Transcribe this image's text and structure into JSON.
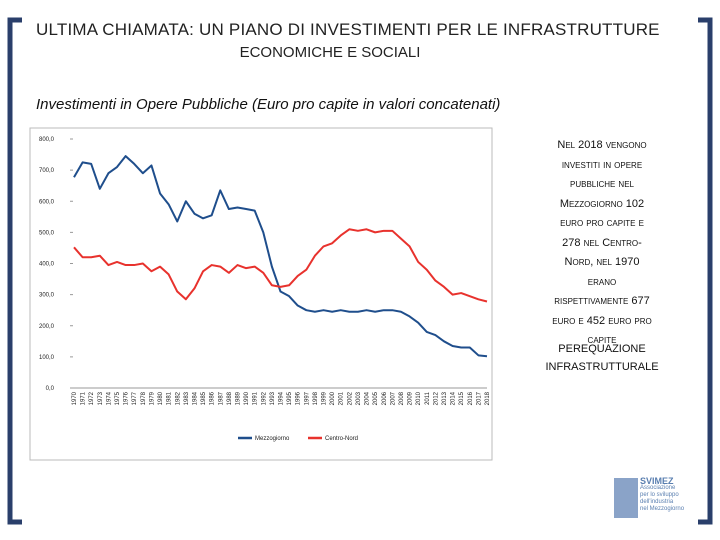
{
  "slide": {
    "title_line1": "ULTIMA CHIAMATA: UN PIANO DI INVESTIMENTI PER LE INFRASTRUTTURE",
    "title_line2": "ECONOMICHE E SOCIALI",
    "subtitle": "Investimenti in Opere Pubbliche (Euro pro capite  in valori concatenati)",
    "side_text": [
      "Nel 2018 vengono",
      "investiti in opere",
      "pubbliche nel",
      "Mezzogiorno 102",
      "euro pro capite e",
      "278 nel Centro-",
      "Nord, nel 1970",
      "erano",
      "rispettivamente 677",
      "euro e 452 euro pro",
      "capite"
    ],
    "side_text2": [
      "PEREQUAZIONE",
      "INFRASTRUTTURALE"
    ],
    "logo": [
      "SVIMEZ",
      "Associazione",
      "per lo sviluppo",
      "dell'industria",
      "nel Mezzogiorno"
    ]
  },
  "chart_data": {
    "type": "line",
    "categories": [
      "1970",
      "1971",
      "1972",
      "1973",
      "1974",
      "1975",
      "1976",
      "1977",
      "1978",
      "1979",
      "1980",
      "1981",
      "1982",
      "1983",
      "1984",
      "1985",
      "1986",
      "1987",
      "1988",
      "1989",
      "1990",
      "1991",
      "1992",
      "1993",
      "1994",
      "1995",
      "1996",
      "1997",
      "1998",
      "1999",
      "2000",
      "2001",
      "2002",
      "2003",
      "2004",
      "2005",
      "2006",
      "2007",
      "2008",
      "2009",
      "2010",
      "2011",
      "2012",
      "2013",
      "2014",
      "2015",
      "2016",
      "2017",
      "2018"
    ],
    "series": [
      {
        "name": "Mezzogiorno",
        "color": "#1f4e8c",
        "values": [
          677,
          725,
          720,
          640,
          690,
          710,
          745,
          720,
          690,
          715,
          625,
          590,
          535,
          600,
          560,
          545,
          555,
          635,
          575,
          580,
          575,
          570,
          500,
          390,
          310,
          295,
          265,
          250,
          245,
          250,
          245,
          250,
          245,
          245,
          250,
          245,
          250,
          250,
          245,
          230,
          210,
          180,
          170,
          150,
          135,
          130,
          130,
          105,
          102
        ]
      },
      {
        "name": "Centro-Nord",
        "color": "#e8322d",
        "values": [
          452,
          420,
          420,
          425,
          395,
          405,
          395,
          395,
          400,
          375,
          390,
          365,
          310,
          285,
          320,
          375,
          395,
          390,
          370,
          395,
          385,
          390,
          370,
          330,
          325,
          330,
          360,
          380,
          425,
          455,
          465,
          490,
          510,
          505,
          510,
          500,
          505,
          505,
          480,
          455,
          405,
          380,
          345,
          325,
          300,
          305,
          295,
          285,
          278
        ]
      }
    ],
    "ylim": [
      0,
      800
    ],
    "yticks": [
      {
        "value": 0,
        "label": "0,0"
      },
      {
        "value": 100,
        "label": "100,0"
      },
      {
        "value": 200,
        "label": "200,0"
      },
      {
        "value": 300,
        "label": "300,0"
      },
      {
        "value": 400,
        "label": "400,0"
      },
      {
        "value": 500,
        "label": "500,0"
      },
      {
        "value": 600,
        "label": "600,0"
      },
      {
        "value": 700,
        "label": "700,0"
      },
      {
        "value": 800,
        "label": "800,0"
      }
    ],
    "grid": false
  }
}
